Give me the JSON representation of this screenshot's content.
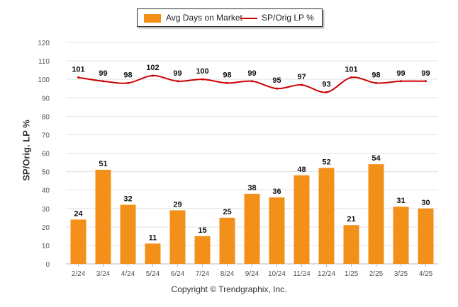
{
  "legend": {
    "bar_label": "Avg Days on Market",
    "line_label": "SP/Orig LP %"
  },
  "footer": "Copyright © Trendgraphix, Inc.",
  "colors": {
    "bar": "#f39019",
    "line": "#cc0000",
    "grid": "#e3e3e3",
    "axis_text": "#555555"
  },
  "chart_data": {
    "type": "bar",
    "title": "",
    "xlabel": "",
    "ylabel": "SP/Orig. LP %",
    "ylim": [
      0,
      120
    ],
    "yticks": [
      0,
      10,
      20,
      30,
      40,
      50,
      60,
      70,
      80,
      90,
      100,
      110,
      120
    ],
    "grid": true,
    "legend_position": "top-center",
    "categories": [
      "2/24",
      "3/24",
      "4/24",
      "5/24",
      "6/24",
      "7/24",
      "8/24",
      "9/24",
      "10/24",
      "11/24",
      "12/24",
      "1/25",
      "2/25",
      "3/25",
      "4/25"
    ],
    "series": [
      {
        "name": "Avg Days on Market",
        "type": "bar",
        "values": [
          24,
          51,
          32,
          11,
          29,
          15,
          25,
          38,
          36,
          48,
          52,
          21,
          54,
          31,
          30
        ]
      },
      {
        "name": "SP/Orig LP %",
        "type": "line",
        "values": [
          101,
          99,
          98,
          102,
          99,
          100,
          98,
          99,
          95,
          97,
          93,
          101,
          98,
          99,
          99
        ]
      }
    ]
  }
}
